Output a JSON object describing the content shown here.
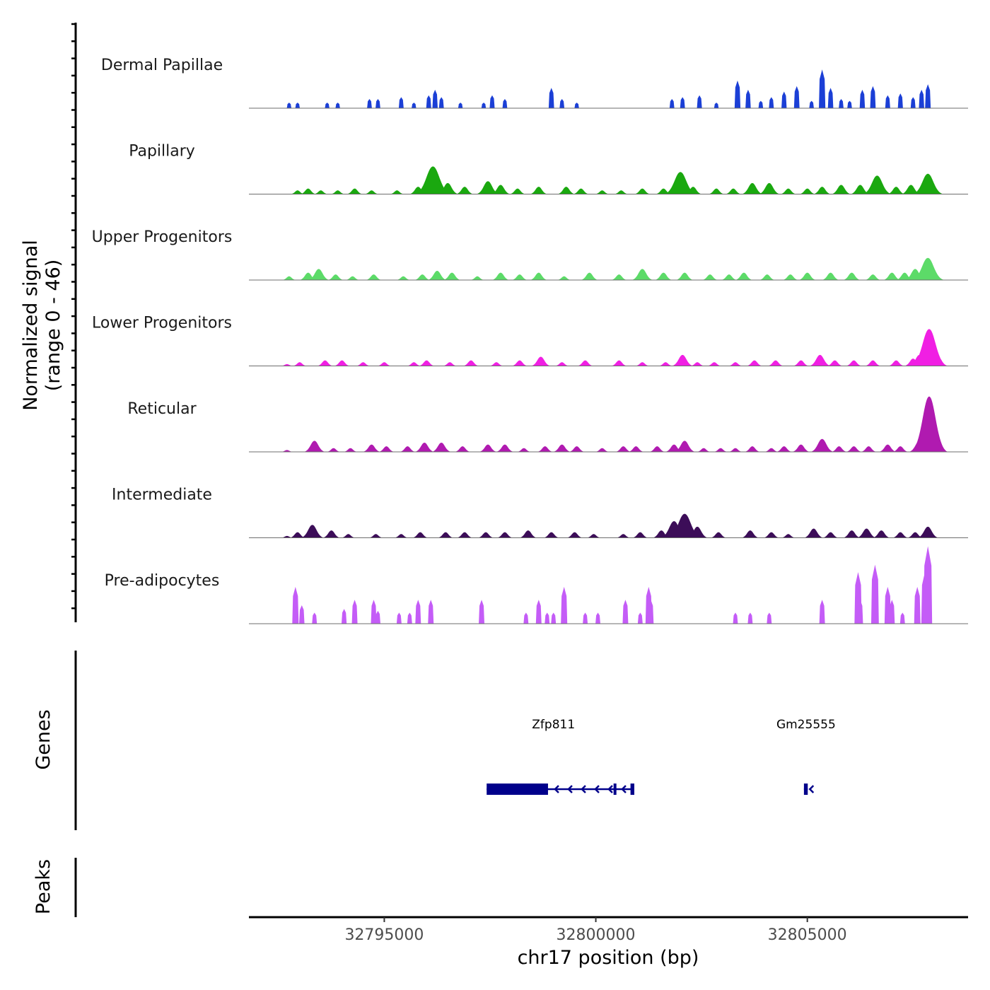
{
  "chart_data": {
    "type": "area",
    "title": "",
    "chromosome": "chr17",
    "xlabel": "chr17 position (bp)",
    "ylabel_line1": "Normalized signal",
    "ylabel_line2": "(range 0 - 46)",
    "ylim": [
      0,
      46
    ],
    "xlim": [
      32791800,
      32808800
    ],
    "x_ticks": [
      {
        "value": 32795000,
        "label": "32795000"
      },
      {
        "value": 32800000,
        "label": "32800000"
      },
      {
        "value": 32805000,
        "label": "32805000"
      }
    ],
    "tracks": [
      {
        "name": "Dermal Papillae",
        "color": "#1b3fd6",
        "style": "block",
        "peaks": [
          [
            32792750,
            3
          ],
          [
            32792950,
            3
          ],
          [
            32793650,
            3
          ],
          [
            32793900,
            3
          ],
          [
            32794650,
            5
          ],
          [
            32794850,
            5
          ],
          [
            32795400,
            6
          ],
          [
            32795700,
            3
          ],
          [
            32796050,
            7
          ],
          [
            32796200,
            10
          ],
          [
            32796350,
            6
          ],
          [
            32796800,
            3
          ],
          [
            32797350,
            3
          ],
          [
            32797550,
            7
          ],
          [
            32797850,
            5
          ],
          [
            32798950,
            11
          ],
          [
            32799200,
            5
          ],
          [
            32799550,
            3
          ],
          [
            32801800,
            5
          ],
          [
            32802050,
            6
          ],
          [
            32802450,
            7
          ],
          [
            32802850,
            3
          ],
          [
            32803350,
            15
          ],
          [
            32803600,
            10
          ],
          [
            32803900,
            4
          ],
          [
            32804150,
            6
          ],
          [
            32804450,
            9
          ],
          [
            32804750,
            12
          ],
          [
            32805100,
            4
          ],
          [
            32805350,
            21
          ],
          [
            32805550,
            11
          ],
          [
            32805800,
            5
          ],
          [
            32806000,
            4
          ],
          [
            32806300,
            10
          ],
          [
            32806550,
            12
          ],
          [
            32806900,
            7
          ],
          [
            32807200,
            8
          ],
          [
            32807500,
            6
          ],
          [
            32807700,
            10
          ],
          [
            32807850,
            13
          ]
        ]
      },
      {
        "name": "Papillary",
        "color": "#1aa80f",
        "style": "smooth",
        "peaks": [
          [
            32792950,
            2
          ],
          [
            32793200,
            3
          ],
          [
            32793500,
            2
          ],
          [
            32793900,
            2
          ],
          [
            32794300,
            3
          ],
          [
            32794700,
            2
          ],
          [
            32795300,
            2
          ],
          [
            32795800,
            4
          ],
          [
            32796150,
            15
          ],
          [
            32796500,
            6
          ],
          [
            32796900,
            4
          ],
          [
            32797450,
            7
          ],
          [
            32797750,
            5
          ],
          [
            32798150,
            3
          ],
          [
            32798650,
            4
          ],
          [
            32799300,
            4
          ],
          [
            32799650,
            3
          ],
          [
            32800150,
            2
          ],
          [
            32800600,
            2
          ],
          [
            32801100,
            3
          ],
          [
            32801600,
            3
          ],
          [
            32802000,
            12
          ],
          [
            32802300,
            4
          ],
          [
            32802850,
            3
          ],
          [
            32803250,
            3
          ],
          [
            32803700,
            6
          ],
          [
            32804100,
            6
          ],
          [
            32804550,
            3
          ],
          [
            32805000,
            3
          ],
          [
            32805350,
            4
          ],
          [
            32805800,
            5
          ],
          [
            32806250,
            5
          ],
          [
            32806650,
            10
          ],
          [
            32807100,
            4
          ],
          [
            32807450,
            5
          ],
          [
            32807850,
            11
          ]
        ]
      },
      {
        "name": "Upper Progenitors",
        "color": "#5cdb68",
        "style": "smooth",
        "peaks": [
          [
            32792750,
            2
          ],
          [
            32793200,
            4
          ],
          [
            32793450,
            6
          ],
          [
            32793850,
            3
          ],
          [
            32794250,
            2
          ],
          [
            32794750,
            3
          ],
          [
            32795450,
            2
          ],
          [
            32795900,
            3
          ],
          [
            32796250,
            5
          ],
          [
            32796600,
            4
          ],
          [
            32797200,
            2
          ],
          [
            32797750,
            4
          ],
          [
            32798200,
            3
          ],
          [
            32798650,
            4
          ],
          [
            32799250,
            2
          ],
          [
            32799850,
            4
          ],
          [
            32800550,
            3
          ],
          [
            32801100,
            6
          ],
          [
            32801600,
            4
          ],
          [
            32802100,
            4
          ],
          [
            32802700,
            3
          ],
          [
            32803150,
            3
          ],
          [
            32803500,
            4
          ],
          [
            32804050,
            3
          ],
          [
            32804600,
            3
          ],
          [
            32805000,
            4
          ],
          [
            32805550,
            4
          ],
          [
            32806050,
            4
          ],
          [
            32806550,
            3
          ],
          [
            32807000,
            4
          ],
          [
            32807300,
            4
          ],
          [
            32807550,
            6
          ],
          [
            32807850,
            12
          ]
        ]
      },
      {
        "name": "Lower Progenitors",
        "color": "#f01fe3",
        "style": "smooth",
        "peaks": [
          [
            32792700,
            1
          ],
          [
            32793000,
            2
          ],
          [
            32793600,
            3
          ],
          [
            32794000,
            3
          ],
          [
            32794500,
            2
          ],
          [
            32795000,
            2
          ],
          [
            32795700,
            2
          ],
          [
            32796000,
            3
          ],
          [
            32796550,
            2
          ],
          [
            32797050,
            3
          ],
          [
            32797650,
            2
          ],
          [
            32798200,
            3
          ],
          [
            32798700,
            5
          ],
          [
            32799200,
            2
          ],
          [
            32799750,
            3
          ],
          [
            32800550,
            3
          ],
          [
            32801100,
            2
          ],
          [
            32801650,
            2
          ],
          [
            32802050,
            6
          ],
          [
            32802400,
            2
          ],
          [
            32802800,
            2
          ],
          [
            32803300,
            2
          ],
          [
            32803750,
            3
          ],
          [
            32804250,
            3
          ],
          [
            32804850,
            3
          ],
          [
            32805300,
            6
          ],
          [
            32805650,
            3
          ],
          [
            32806100,
            3
          ],
          [
            32806550,
            3
          ],
          [
            32807100,
            3
          ],
          [
            32807500,
            4
          ],
          [
            32807650,
            6
          ],
          [
            32807880,
            20
          ]
        ]
      },
      {
        "name": "Reticular",
        "color": "#b01ab0",
        "style": "smooth",
        "peaks": [
          [
            32792700,
            1
          ],
          [
            32793350,
            6
          ],
          [
            32793800,
            2
          ],
          [
            32794200,
            2
          ],
          [
            32794700,
            4
          ],
          [
            32795050,
            3
          ],
          [
            32795550,
            3
          ],
          [
            32795950,
            5
          ],
          [
            32796350,
            5
          ],
          [
            32796850,
            3
          ],
          [
            32797450,
            4
          ],
          [
            32797850,
            4
          ],
          [
            32798300,
            2
          ],
          [
            32798800,
            3
          ],
          [
            32799200,
            4
          ],
          [
            32799550,
            3
          ],
          [
            32800150,
            2
          ],
          [
            32800650,
            3
          ],
          [
            32800950,
            3
          ],
          [
            32801450,
            3
          ],
          [
            32801850,
            4
          ],
          [
            32802100,
            6
          ],
          [
            32802550,
            2
          ],
          [
            32802950,
            2
          ],
          [
            32803300,
            2
          ],
          [
            32803700,
            3
          ],
          [
            32804150,
            2
          ],
          [
            32804450,
            3
          ],
          [
            32804850,
            4
          ],
          [
            32805350,
            7
          ],
          [
            32805750,
            3
          ],
          [
            32806100,
            3
          ],
          [
            32806450,
            3
          ],
          [
            32806900,
            4
          ],
          [
            32807200,
            3
          ],
          [
            32807650,
            6
          ],
          [
            32807880,
            30
          ]
        ]
      },
      {
        "name": "Intermediate",
        "color": "#3c0d58",
        "style": "smooth",
        "peaks": [
          [
            32792700,
            1
          ],
          [
            32792950,
            3
          ],
          [
            32793300,
            7
          ],
          [
            32793750,
            4
          ],
          [
            32794150,
            2
          ],
          [
            32794800,
            2
          ],
          [
            32795400,
            2
          ],
          [
            32795850,
            3
          ],
          [
            32796450,
            3
          ],
          [
            32796900,
            3
          ],
          [
            32797400,
            3
          ],
          [
            32797850,
            3
          ],
          [
            32798400,
            4
          ],
          [
            32798950,
            3
          ],
          [
            32799500,
            3
          ],
          [
            32799950,
            2
          ],
          [
            32800650,
            2
          ],
          [
            32801050,
            3
          ],
          [
            32801550,
            4
          ],
          [
            32801850,
            9
          ],
          [
            32802100,
            13
          ],
          [
            32802400,
            6
          ],
          [
            32802900,
            3
          ],
          [
            32803650,
            4
          ],
          [
            32804150,
            3
          ],
          [
            32804550,
            2
          ],
          [
            32805150,
            5
          ],
          [
            32805550,
            3
          ],
          [
            32806050,
            4
          ],
          [
            32806400,
            5
          ],
          [
            32806750,
            4
          ],
          [
            32807200,
            3
          ],
          [
            32807550,
            3
          ],
          [
            32807850,
            6
          ]
        ]
      },
      {
        "name": "Pre-adipocytes",
        "color": "#c45cf7",
        "style": "block",
        "peaks": [
          [
            32792900,
            20
          ],
          [
            32793050,
            10
          ],
          [
            32793350,
            6
          ],
          [
            32794050,
            8
          ],
          [
            32794300,
            13
          ],
          [
            32794750,
            13
          ],
          [
            32794850,
            7
          ],
          [
            32795350,
            6
          ],
          [
            32795600,
            6
          ],
          [
            32795800,
            13
          ],
          [
            32796100,
            13
          ],
          [
            32797300,
            13
          ],
          [
            32798350,
            6
          ],
          [
            32798650,
            13
          ],
          [
            32798850,
            6
          ],
          [
            32799000,
            6
          ],
          [
            32799250,
            20
          ],
          [
            32799750,
            6
          ],
          [
            32800050,
            6
          ],
          [
            32800700,
            13
          ],
          [
            32801050,
            6
          ],
          [
            32801250,
            20
          ],
          [
            32801300,
            13
          ],
          [
            32803300,
            6
          ],
          [
            32803650,
            6
          ],
          [
            32804100,
            6
          ],
          [
            32805350,
            13
          ],
          [
            32806200,
            28
          ],
          [
            32806250,
            13
          ],
          [
            32806600,
            32
          ],
          [
            32806900,
            20
          ],
          [
            32807000,
            13
          ],
          [
            32807250,
            6
          ],
          [
            32807600,
            20
          ],
          [
            32807780,
            28
          ],
          [
            32807850,
            42
          ]
        ]
      }
    ],
    "genes": [
      {
        "name": "Zfp811",
        "strand": "-",
        "start": 32797420,
        "end": 32800910,
        "thick_start": 32797420,
        "thick_end": 32798870,
        "exons": [
          [
            32797420,
            32798870
          ],
          [
            32800420,
            32800460
          ],
          [
            32800820,
            32800910
          ]
        ],
        "label_position": 32799000
      },
      {
        "name": "Gm25555",
        "strand": "-",
        "start": 32804920,
        "end": 32805010,
        "thick_start": 32804920,
        "thick_end": 32805010,
        "exons": [
          [
            32804920,
            32805010
          ]
        ],
        "label_position": 32804970
      }
    ],
    "peaks_track": {
      "label": "Peaks",
      "regions": []
    },
    "genes_track_label": "Genes"
  }
}
